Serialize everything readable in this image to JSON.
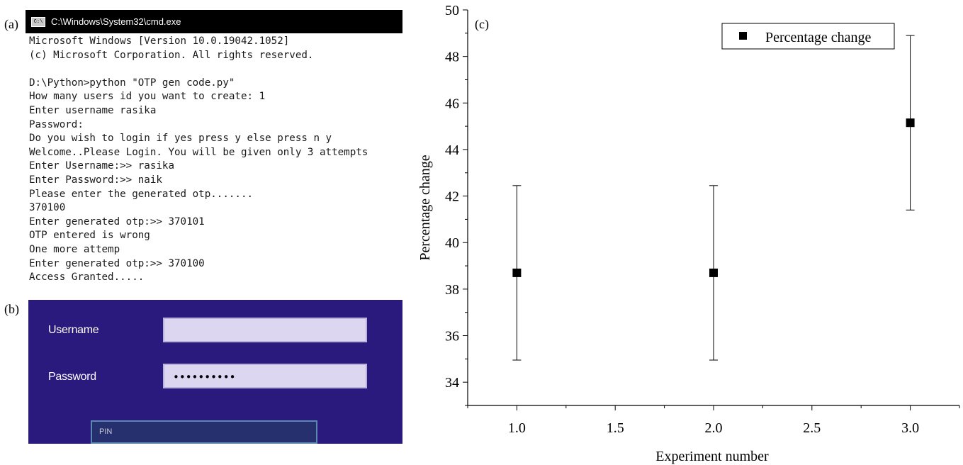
{
  "panel_labels": {
    "a": "(a)",
    "b": "(b)",
    "c": "(c)"
  },
  "cmd": {
    "title": "C:\\Windows\\System32\\cmd.exe",
    "icon_text": "C:\\",
    "lines": [
      "Microsoft Windows [Version 10.0.19042.1052]",
      "(c) Microsoft Corporation. All rights reserved.",
      "",
      "D:\\Python>python \"OTP gen code.py\"",
      "How many users id you want to create: 1",
      "Enter username rasika",
      "Password:",
      "Do you wish to login if yes press y else press n y",
      "Welcome..Please Login. You will be given only 3 attempts",
      "Enter Username:>> rasika",
      "Enter Password:>> naik",
      "Please enter the generated otp.......",
      "370100",
      "Enter generated otp:>> 370101",
      "OTP entered is wrong",
      "One more attemp",
      "Enter generated otp:>> 370100",
      "Access Granted....."
    ]
  },
  "login": {
    "username_label": "Username",
    "password_label": "Password",
    "username_value": "",
    "password_value": "••••••••••",
    "pin_placeholder": "PIN",
    "colors": {
      "background": "#2a1a7e",
      "field": "#dcd6f0",
      "pin_border": "#5a88b0"
    }
  },
  "chart_data": {
    "type": "scatter",
    "xlabel": "Experiment number",
    "ylabel": "Percentage change",
    "xlim": [
      0.75,
      3.25
    ],
    "ylim": [
      33,
      50
    ],
    "xticks": [
      "1.0",
      "1.5",
      "2.0",
      "2.5",
      "3.0"
    ],
    "yticks": [
      "34",
      "36",
      "38",
      "40",
      "42",
      "44",
      "46",
      "48",
      "50"
    ],
    "legend": {
      "label": "Percentage change",
      "placement": "top-right"
    },
    "series": [
      {
        "name": "Percentage change",
        "x": [
          1.0,
          2.0,
          3.0
        ],
        "y": [
          38.7,
          38.7,
          45.15
        ],
        "error_low": [
          34.95,
          34.95,
          41.4
        ],
        "error_high": [
          42.45,
          42.45,
          48.9
        ]
      }
    ],
    "grid": false
  }
}
